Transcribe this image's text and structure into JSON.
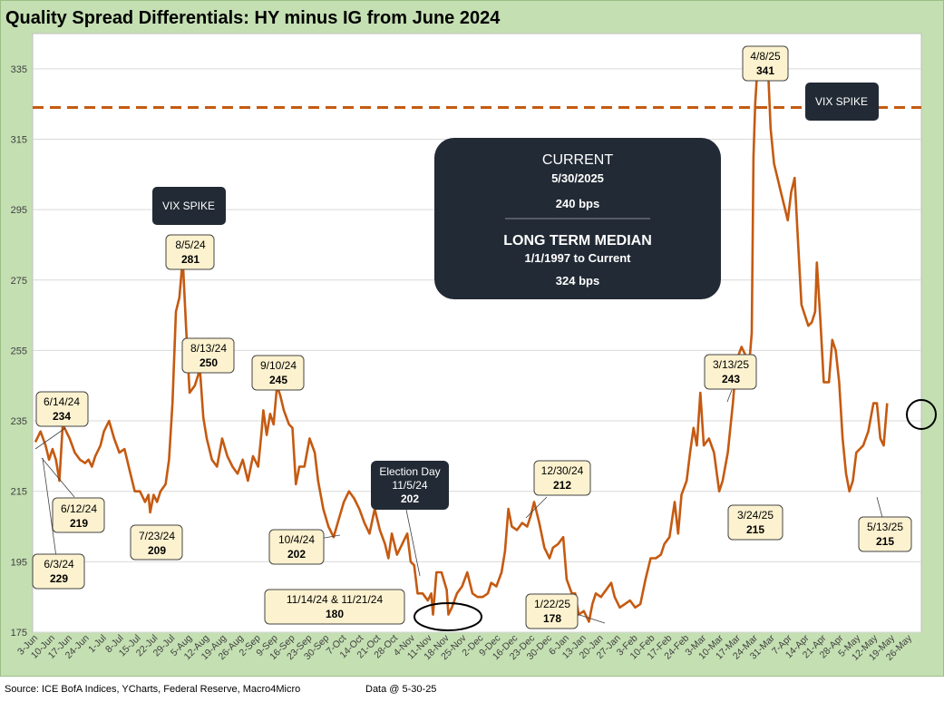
{
  "title": "Quality Spread Differentials: HY minus IG from June 2024",
  "footer": {
    "source": "Source: ICE BofA Indices, YCharts, Federal Reserve, Macro4Micro",
    "data_date": "Data @ 5-30-25"
  },
  "colors": {
    "frame_bg": "#c4dfb2",
    "line": "#c55a11",
    "median": "#c55a11",
    "callout_bg": "#fdf2cf",
    "dark_box": "#222a35",
    "grid": "#d9d9d9"
  },
  "info_box": {
    "current_title": "CURRENT",
    "current_date": "5/30/2025",
    "current_value": "240 bps",
    "median_title": "LONG TERM MEDIAN",
    "median_range": "1/1/1997 to Current",
    "median_value": "324 bps"
  },
  "vix_labels": [
    "VIX SPIKE",
    "VIX SPIKE"
  ],
  "election": {
    "line1": "Election Day",
    "line2": "11/5/24",
    "line3": "202"
  },
  "callouts": [
    {
      "date": "6/14/24",
      "value": "234"
    },
    {
      "date": "6/12/24",
      "value": "219"
    },
    {
      "date": "6/3/24",
      "value": "229"
    },
    {
      "date": "7/23/24",
      "value": "209"
    },
    {
      "date": "8/5/24",
      "value": "281"
    },
    {
      "date": "8/13/24",
      "value": "250"
    },
    {
      "date": "9/10/24",
      "value": "245"
    },
    {
      "date": "10/4/24",
      "value": "202"
    },
    {
      "date": "11/14/24 & 11/21/24",
      "value": "180"
    },
    {
      "date": "12/30/24",
      "value": "212"
    },
    {
      "date": "1/22/25",
      "value": "178"
    },
    {
      "date": "3/13/25",
      "value": "243"
    },
    {
      "date": "3/24/25",
      "value": "215"
    },
    {
      "date": "4/8/25",
      "value": "341"
    },
    {
      "date": "5/13/25",
      "value": "215"
    }
  ],
  "chart_data": {
    "type": "line",
    "title": "Quality Spread Differentials: HY minus IG from June 2024",
    "xlabel": "",
    "ylabel": "",
    "ylim": [
      175,
      345
    ],
    "yticks": [
      175,
      195,
      215,
      235,
      255,
      275,
      295,
      315,
      335
    ],
    "grid": "horizontal",
    "median_line": 324,
    "categories": [
      "3-Jun",
      "10-Jun",
      "17-Jun",
      "24-Jun",
      "1-Jul",
      "8-Jul",
      "15-Jul",
      "22-Jul",
      "29-Jul",
      "5-Aug",
      "12-Aug",
      "19-Aug",
      "26-Aug",
      "2-Sep",
      "9-Sep",
      "16-Sep",
      "23-Sep",
      "30-Sep",
      "7-Oct",
      "14-Oct",
      "21-Oct",
      "28-Oct",
      "4-Nov",
      "11-Nov",
      "18-Nov",
      "25-Nov",
      "2-Dec",
      "9-Dec",
      "16-Dec",
      "23-Dec",
      "30-Dec",
      "6-Jan",
      "13-Jan",
      "20-Jan",
      "27-Jan",
      "3-Feb",
      "10-Feb",
      "17-Feb",
      "24-Feb",
      "3-Mar",
      "10-Mar",
      "17-Mar",
      "24-Mar",
      "31-Mar",
      "7-Apr",
      "14-Apr",
      "21-Apr",
      "28-Apr",
      "5-May",
      "12-May",
      "19-May",
      "26-May"
    ],
    "series": [
      {
        "values": [
          [
            0,
            229
          ],
          [
            0.3,
            232
          ],
          [
            0.6,
            228
          ],
          [
            0.8,
            224
          ],
          [
            1.0,
            227
          ],
          [
            1.2,
            224
          ],
          [
            1.4,
            218
          ],
          [
            1.6,
            234
          ],
          [
            1.8,
            232
          ],
          [
            2.0,
            230
          ],
          [
            2.3,
            226
          ],
          [
            2.6,
            224
          ],
          [
            2.9,
            223
          ],
          [
            3.1,
            224
          ],
          [
            3.3,
            222
          ],
          [
            3.5,
            225
          ],
          [
            3.8,
            228
          ],
          [
            4.0,
            232
          ],
          [
            4.3,
            235
          ],
          [
            4.6,
            230
          ],
          [
            4.9,
            226
          ],
          [
            5.2,
            227
          ],
          [
            5.5,
            221
          ],
          [
            5.8,
            215
          ],
          [
            6.1,
            215
          ],
          [
            6.4,
            212
          ],
          [
            6.6,
            214
          ],
          [
            6.7,
            209
          ],
          [
            6.9,
            214
          ],
          [
            7.1,
            212
          ],
          [
            7.3,
            215
          ],
          [
            7.6,
            217
          ],
          [
            7.8,
            224
          ],
          [
            8.0,
            240
          ],
          [
            8.2,
            266
          ],
          [
            8.4,
            270
          ],
          [
            8.6,
            281
          ],
          [
            8.8,
            261
          ],
          [
            9.0,
            243
          ],
          [
            9.3,
            245
          ],
          [
            9.5,
            248
          ],
          [
            9.6,
            250
          ],
          [
            9.8,
            236
          ],
          [
            10.0,
            230
          ],
          [
            10.3,
            224
          ],
          [
            10.6,
            222
          ],
          [
            10.9,
            230
          ],
          [
            11.2,
            225
          ],
          [
            11.5,
            222
          ],
          [
            11.8,
            220
          ],
          [
            12.1,
            224
          ],
          [
            12.4,
            218
          ],
          [
            12.7,
            225
          ],
          [
            13.0,
            222
          ],
          [
            13.2,
            232
          ],
          [
            13.3,
            238
          ],
          [
            13.5,
            231
          ],
          [
            13.7,
            237
          ],
          [
            13.9,
            234
          ],
          [
            14.1,
            245
          ],
          [
            14.3,
            242
          ],
          [
            14.5,
            238
          ],
          [
            14.8,
            234
          ],
          [
            15.0,
            233
          ],
          [
            15.2,
            217
          ],
          [
            15.4,
            222
          ],
          [
            15.7,
            222
          ],
          [
            16.0,
            230
          ],
          [
            16.3,
            226
          ],
          [
            16.5,
            218
          ],
          [
            16.8,
            210
          ],
          [
            17.1,
            205
          ],
          [
            17.4,
            202
          ],
          [
            17.7,
            207
          ],
          [
            18.0,
            212
          ],
          [
            18.3,
            215
          ],
          [
            18.6,
            213
          ],
          [
            18.9,
            210
          ],
          [
            19.2,
            206
          ],
          [
            19.5,
            203
          ],
          [
            19.8,
            210
          ],
          [
            20.1,
            204
          ],
          [
            20.4,
            200
          ],
          [
            20.6,
            196
          ],
          [
            20.8,
            203
          ],
          [
            21.1,
            197
          ],
          [
            21.4,
            200
          ],
          [
            21.7,
            203
          ],
          [
            21.9,
            195
          ],
          [
            22.1,
            194
          ],
          [
            22.3,
            186
          ],
          [
            22.6,
            186
          ],
          [
            22.9,
            184
          ],
          [
            23.1,
            186
          ],
          [
            23.2,
            180
          ],
          [
            23.4,
            192
          ],
          [
            23.7,
            192
          ],
          [
            24.0,
            187
          ],
          [
            24.1,
            180
          ],
          [
            24.3,
            182
          ],
          [
            24.6,
            186
          ],
          [
            24.9,
            188
          ],
          [
            25.2,
            192
          ],
          [
            25.5,
            186
          ],
          [
            25.8,
            185
          ],
          [
            26.1,
            185
          ],
          [
            26.4,
            186
          ],
          [
            26.6,
            189
          ],
          [
            26.9,
            188
          ],
          [
            27.2,
            192
          ],
          [
            27.4,
            198
          ],
          [
            27.6,
            210
          ],
          [
            27.8,
            205
          ],
          [
            28.1,
            204
          ],
          [
            28.4,
            206
          ],
          [
            28.7,
            205
          ],
          [
            28.9,
            208
          ],
          [
            29.1,
            212
          ],
          [
            29.4,
            206
          ],
          [
            29.7,
            199
          ],
          [
            30.0,
            196
          ],
          [
            30.2,
            199
          ],
          [
            30.5,
            200
          ],
          [
            30.8,
            202
          ],
          [
            31.0,
            190
          ],
          [
            31.3,
            186
          ],
          [
            31.5,
            186
          ],
          [
            31.7,
            180
          ],
          [
            32.0,
            181
          ],
          [
            32.3,
            178
          ],
          [
            32.5,
            183
          ],
          [
            32.7,
            186
          ],
          [
            33.0,
            185
          ],
          [
            33.3,
            187
          ],
          [
            33.6,
            189
          ],
          [
            33.8,
            185
          ],
          [
            34.1,
            182
          ],
          [
            34.4,
            183
          ],
          [
            34.7,
            184
          ],
          [
            35.0,
            182
          ],
          [
            35.3,
            183
          ],
          [
            35.6,
            190
          ],
          [
            35.9,
            196
          ],
          [
            36.2,
            196
          ],
          [
            36.5,
            197
          ],
          [
            36.7,
            200
          ],
          [
            37.0,
            202
          ],
          [
            37.3,
            212
          ],
          [
            37.5,
            203
          ],
          [
            37.7,
            214
          ],
          [
            38.0,
            218
          ],
          [
            38.2,
            226
          ],
          [
            38.4,
            233
          ],
          [
            38.6,
            228
          ],
          [
            38.8,
            243
          ],
          [
            39.0,
            228
          ],
          [
            39.3,
            230
          ],
          [
            39.6,
            226
          ],
          [
            39.9,
            215
          ],
          [
            40.1,
            218
          ],
          [
            40.4,
            226
          ],
          [
            40.7,
            240
          ],
          [
            40.9,
            252
          ],
          [
            41.2,
            256
          ],
          [
            41.4,
            254
          ],
          [
            41.6,
            248
          ],
          [
            41.8,
            260
          ],
          [
            41.9,
            310
          ],
          [
            42.0,
            325
          ],
          [
            42.1,
            333
          ],
          [
            42.3,
            333
          ],
          [
            42.5,
            335
          ],
          [
            42.7,
            341
          ],
          [
            42.9,
            318
          ],
          [
            43.1,
            308
          ],
          [
            43.3,
            304
          ],
          [
            43.5,
            300
          ],
          [
            43.7,
            296
          ],
          [
            43.9,
            292
          ],
          [
            44.1,
            300
          ],
          [
            44.3,
            304
          ],
          [
            44.5,
            286
          ],
          [
            44.7,
            268
          ],
          [
            44.9,
            265
          ],
          [
            45.1,
            262
          ],
          [
            45.3,
            263
          ],
          [
            45.5,
            266
          ],
          [
            45.6,
            280
          ],
          [
            45.8,
            264
          ],
          [
            46.0,
            246
          ],
          [
            46.3,
            246
          ],
          [
            46.5,
            258
          ],
          [
            46.7,
            255
          ],
          [
            46.9,
            246
          ],
          [
            47.1,
            230
          ],
          [
            47.3,
            220
          ],
          [
            47.5,
            215
          ],
          [
            47.7,
            218
          ],
          [
            47.9,
            226
          ],
          [
            48.1,
            227
          ],
          [
            48.3,
            228
          ],
          [
            48.6,
            232
          ],
          [
            48.9,
            240
          ],
          [
            49.1,
            240
          ],
          [
            49.3,
            230
          ],
          [
            49.5,
            228
          ],
          [
            49.7,
            240
          ]
        ]
      }
    ]
  }
}
